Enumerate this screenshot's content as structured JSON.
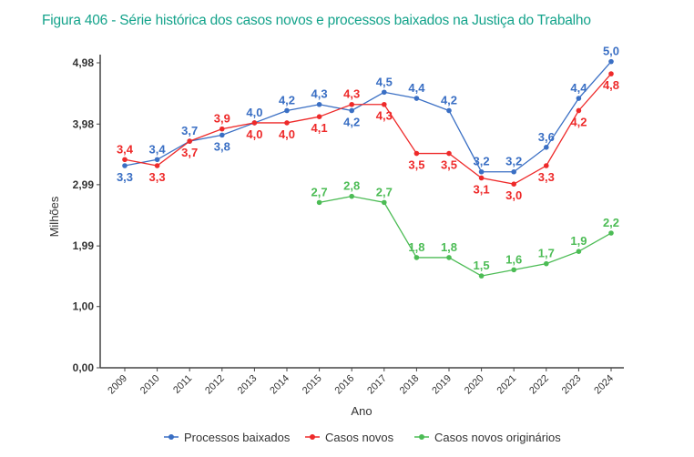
{
  "chart_data": {
    "type": "line",
    "title": "Figura 406 - Série histórica dos casos novos e processos baixados na Justiça do Trabalho",
    "xlabel": "Ano",
    "ylabel": "Milhões",
    "categories": [
      "2009",
      "2010",
      "2011",
      "2012",
      "2013",
      "2014",
      "2015",
      "2016",
      "2017",
      "2018",
      "2019",
      "2020",
      "2021",
      "2022",
      "2023",
      "2024"
    ],
    "yticks": [
      "0,00",
      "1,00",
      "1,99",
      "2,99",
      "3,98",
      "4,98"
    ],
    "ytick_values": [
      0,
      1.0,
      1.99,
      2.99,
      3.98,
      4.98
    ],
    "ylim": [
      0,
      4.98
    ],
    "grid": false,
    "legend_position": "bottom",
    "series": [
      {
        "name": "Processos baixados",
        "color": "#3a6fc4",
        "values": [
          3.3,
          3.4,
          3.7,
          3.8,
          4.0,
          4.2,
          4.3,
          4.2,
          4.5,
          4.4,
          4.2,
          3.2,
          3.2,
          3.6,
          4.4,
          5.0
        ]
      },
      {
        "name": "Casos novos",
        "color": "#ee2a2a",
        "values": [
          3.4,
          3.3,
          3.7,
          3.9,
          4.0,
          4.0,
          4.1,
          4.3,
          4.3,
          3.5,
          3.5,
          3.1,
          3.0,
          3.3,
          4.2,
          4.8
        ]
      },
      {
        "name": "Casos novos originários",
        "color": "#4cbc55",
        "values": [
          null,
          null,
          null,
          null,
          null,
          null,
          2.7,
          2.8,
          2.7,
          1.8,
          1.8,
          1.5,
          1.6,
          1.7,
          1.9,
          2.2
        ]
      }
    ]
  }
}
